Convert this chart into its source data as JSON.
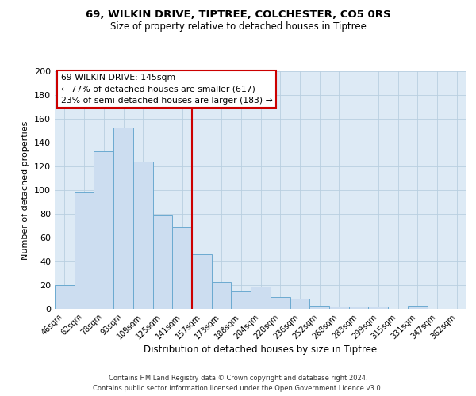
{
  "title": "69, WILKIN DRIVE, TIPTREE, COLCHESTER, CO5 0RS",
  "subtitle": "Size of property relative to detached houses in Tiptree",
  "xlabel": "Distribution of detached houses by size in Tiptree",
  "ylabel": "Number of detached properties",
  "bar_labels": [
    "46sqm",
    "62sqm",
    "78sqm",
    "93sqm",
    "109sqm",
    "125sqm",
    "141sqm",
    "157sqm",
    "173sqm",
    "188sqm",
    "204sqm",
    "220sqm",
    "236sqm",
    "252sqm",
    "268sqm",
    "283sqm",
    "299sqm",
    "315sqm",
    "331sqm",
    "347sqm",
    "362sqm"
  ],
  "bar_values": [
    20,
    98,
    133,
    153,
    124,
    79,
    69,
    46,
    23,
    15,
    19,
    10,
    9,
    3,
    2,
    2,
    2,
    0,
    3,
    0,
    0
  ],
  "bar_color": "#ccddf0",
  "bar_edge_color": "#6baad0",
  "ylim": [
    0,
    200
  ],
  "yticks": [
    0,
    20,
    40,
    60,
    80,
    100,
    120,
    140,
    160,
    180,
    200
  ],
  "vline_x": 6.5,
  "vline_color": "#cc0000",
  "annotation_title": "69 WILKIN DRIVE: 145sqm",
  "annotation_line1": "← 77% of detached houses are smaller (617)",
  "annotation_line2": "23% of semi-detached houses are larger (183) →",
  "annotation_box_color": "#ffffff",
  "annotation_box_edge": "#cc0000",
  "footer1": "Contains HM Land Registry data © Crown copyright and database right 2024.",
  "footer2": "Contains public sector information licensed under the Open Government Licence v3.0.",
  "background_color": "#ffffff",
  "axes_bg_color": "#ddeaf5",
  "grid_color": "#b8cfe0"
}
